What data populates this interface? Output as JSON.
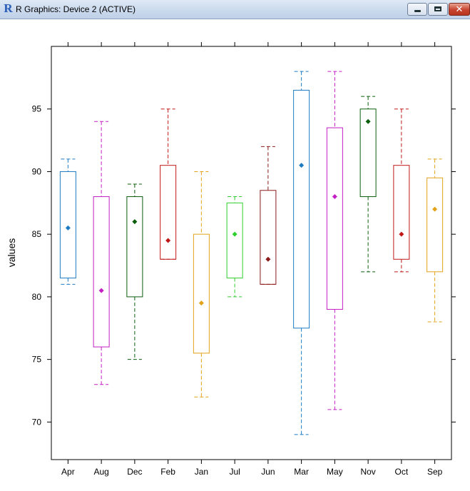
{
  "window": {
    "title": "R Graphics: Device 2 (ACTIVE)",
    "icon": "r-logo-icon",
    "icon_text": "R",
    "close_glyph": "✕"
  },
  "chart_data": {
    "type": "boxplot",
    "title": "",
    "xlabel": "",
    "ylabel": "values",
    "ylim": [
      67,
      100
    ],
    "yticks": [
      70,
      75,
      80,
      85,
      90,
      95
    ],
    "ytick_labels": [
      "70",
      "75",
      "80",
      "85",
      "90",
      "95"
    ],
    "grid": false,
    "categories": [
      "Apr",
      "Aug",
      "Dec",
      "Feb",
      "Jan",
      "Jul",
      "Jun",
      "Mar",
      "May",
      "Nov",
      "Oct",
      "Sep"
    ],
    "boxes": [
      {
        "category": "Apr",
        "min": 81,
        "q1": 81.5,
        "q3": 90,
        "max": 91,
        "mean": 85.5,
        "color": "#1f7bc1"
      },
      {
        "category": "Aug",
        "min": 73,
        "q1": 76,
        "q3": 88,
        "max": 94,
        "mean": 80.5,
        "color": "#c41fc4"
      },
      {
        "category": "Dec",
        "min": 75,
        "q1": 80,
        "q3": 88,
        "max": 89,
        "mean": 86,
        "color": "#0b5e0b"
      },
      {
        "category": "Feb",
        "min": 83,
        "q1": 83,
        "q3": 90.5,
        "max": 95,
        "mean": 84.5,
        "color": "#c01818"
      },
      {
        "category": "Jan",
        "min": 72,
        "q1": 75.5,
        "q3": 85,
        "max": 90,
        "mean": 79.5,
        "color": "#e2a21a"
      },
      {
        "category": "Jul",
        "min": 80,
        "q1": 81.5,
        "q3": 87.5,
        "max": 88,
        "mean": 85,
        "color": "#2fce2f"
      },
      {
        "category": "Jun",
        "min": 81,
        "q1": 81,
        "q3": 88.5,
        "max": 92,
        "mean": 83,
        "color": "#8b1a1a"
      },
      {
        "category": "Mar",
        "min": 69,
        "q1": 77.5,
        "q3": 96.5,
        "max": 98,
        "mean": 90.5,
        "color": "#1f7bc1"
      },
      {
        "category": "May",
        "min": 71,
        "q1": 79,
        "q3": 93.5,
        "max": 98,
        "mean": 88,
        "color": "#c41fc4"
      },
      {
        "category": "Nov",
        "min": 82,
        "q1": 88,
        "q3": 95,
        "max": 96,
        "mean": 94,
        "color": "#0b5e0b"
      },
      {
        "category": "Oct",
        "min": 82,
        "q1": 83,
        "q3": 90.5,
        "max": 95,
        "mean": 85,
        "color": "#c01818"
      },
      {
        "category": "Sep",
        "min": 78,
        "q1": 82,
        "q3": 89.5,
        "max": 91,
        "mean": 87,
        "color": "#e2a21a"
      }
    ]
  }
}
